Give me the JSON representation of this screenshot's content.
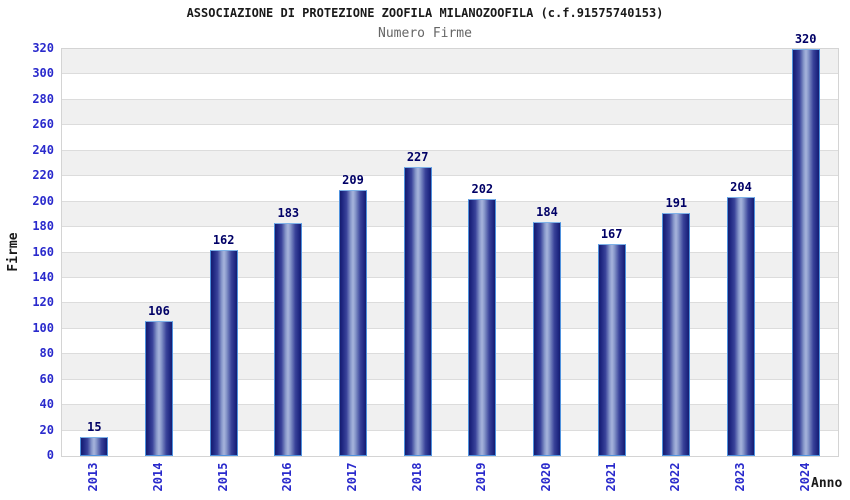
{
  "header": {
    "title": "ASSOCIAZIONE DI PROTEZIONE ZOOFILA MILANOZOOFILA (c.f.91575740153)",
    "subtitle": "Numero Firme"
  },
  "chart_data": {
    "type": "bar",
    "title": "ASSOCIAZIONE DI PROTEZIONE ZOOFILA MILANOZOOFILA (c.f.91575740153)",
    "subtitle": "Numero Firme",
    "categories": [
      "2013",
      "2014",
      "2015",
      "2016",
      "2017",
      "2018",
      "2019",
      "2020",
      "2021",
      "2022",
      "2023",
      "2024"
    ],
    "values": [
      15,
      106,
      162,
      183,
      209,
      227,
      202,
      184,
      167,
      191,
      204,
      320
    ],
    "xlabel": "Anno",
    "ylabel": "Firme",
    "ylim": [
      0,
      320
    ],
    "ytick_step": 20,
    "yticks": [
      0,
      20,
      40,
      60,
      80,
      100,
      120,
      140,
      160,
      180,
      200,
      220,
      240,
      260,
      280,
      300,
      320
    ],
    "legend": "none",
    "grid": "horizontal gridlines every 20 with alternating white/gray bands",
    "value_labels": "shown above each bar",
    "colors": {
      "title_text": "#1a1a1a",
      "subtitle_text": "#666666",
      "axis_tick_text": "#2a2acc",
      "value_label_text": "#000066",
      "axis_title_text": "#1a1a1a",
      "band_gray": "#f0f0f0",
      "band_white": "#ffffff",
      "grid_line": "#dcdcdc",
      "bar_border": "#4f92de",
      "bar_dark": "#161d6e",
      "bar_mid": "#39439a",
      "bar_highlight": "#a6b3db"
    }
  }
}
